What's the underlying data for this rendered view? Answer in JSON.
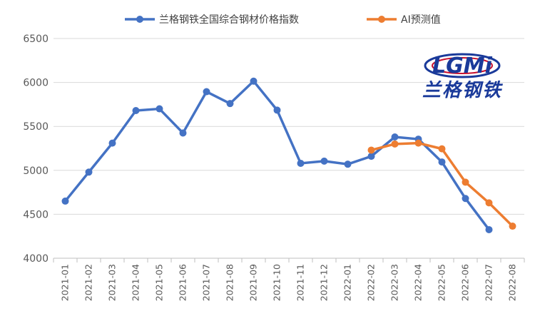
{
  "chart_data": {
    "type": "line",
    "title": "",
    "xlabel": "",
    "ylabel": "",
    "categories": [
      "2021-01",
      "2021-02",
      "2021-03",
      "2021-04",
      "2021-05",
      "2021-06",
      "2021-07",
      "2021-08",
      "2021-09",
      "2021-10",
      "2021-11",
      "2021-12",
      "2022-01",
      "2022-02",
      "2022-03",
      "2022-04",
      "2022-05",
      "2022-06",
      "2022-07",
      "2022-08"
    ],
    "ylim": [
      4000,
      6500
    ],
    "yticks": [
      4000,
      4500,
      5000,
      5500,
      6000,
      6500
    ],
    "grid": true,
    "legend_position": "top",
    "series": [
      {
        "name": "兰格钢铁全国综合钢材价格指数",
        "color": "#4472C4",
        "values": [
          4650,
          4980,
          5310,
          5680,
          5700,
          5425,
          5895,
          5760,
          6015,
          5685,
          5080,
          5105,
          5070,
          5160,
          5380,
          5355,
          5095,
          4680,
          4325,
          null
        ]
      },
      {
        "name": "AI预测值",
        "color": "#ED7D31",
        "values": [
          null,
          null,
          null,
          null,
          null,
          null,
          null,
          null,
          null,
          null,
          null,
          null,
          null,
          5230,
          5300,
          5310,
          5245,
          4865,
          4630,
          4365
        ]
      }
    ]
  },
  "logo": {
    "letters": "LGMi",
    "text": "兰格钢铁"
  }
}
